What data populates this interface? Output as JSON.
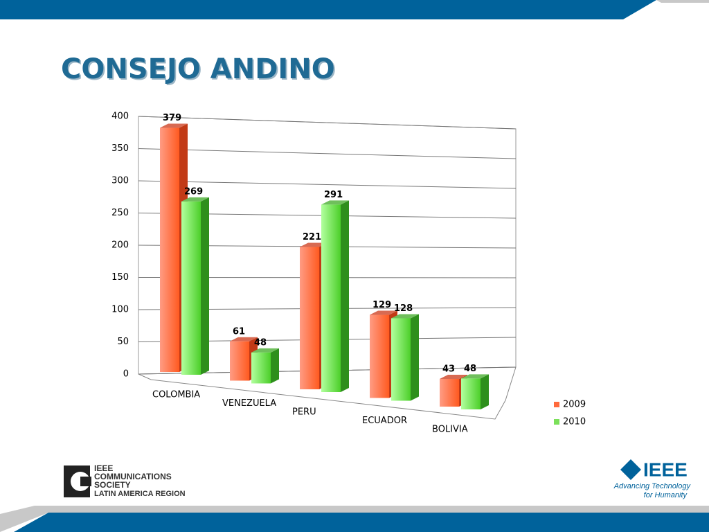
{
  "chart_data": {
    "type": "bar3d",
    "title": "CONSEJO ANDINO",
    "categories": [
      "COLOMBIA",
      "VENEZUELA",
      "PERU",
      "ECUADOR",
      "BOLIVIA"
    ],
    "series": [
      {
        "name": "2009",
        "color": "#ff6a3c",
        "values": [
          379,
          61,
          221,
          129,
          43
        ]
      },
      {
        "name": "2010",
        "color": "#7be05a",
        "values": [
          269,
          48,
          291,
          128,
          48
        ]
      }
    ],
    "ylim": [
      0,
      400
    ],
    "yticks": [
      0,
      50,
      100,
      150,
      200,
      250,
      300,
      350,
      400
    ],
    "grid": true,
    "legend": "right"
  },
  "logos": {
    "left": [
      "IEEE",
      "COMMUNICATIONS",
      "SOCIETY",
      "LATIN AMERICA REGION"
    ],
    "right": {
      "name": "IEEE",
      "tagline": [
        "Advancing Technology",
        "for Humanity"
      ]
    }
  }
}
